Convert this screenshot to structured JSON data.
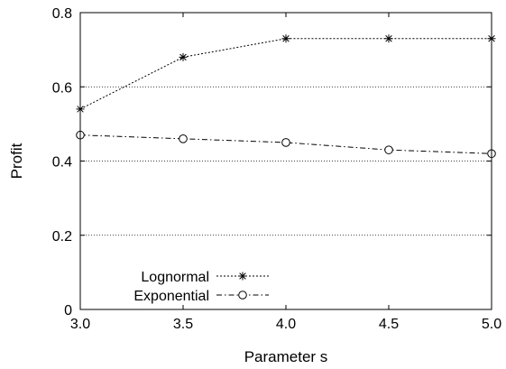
{
  "chart_data": {
    "type": "line",
    "xlabel": "Parameter s",
    "ylabel": "Profit",
    "xlim": [
      3.0,
      5.0
    ],
    "ylim": [
      0,
      0.8
    ],
    "x": [
      3.0,
      3.5,
      4.0,
      4.5,
      5.0
    ],
    "x_ticks": [
      "3.0",
      "3.5",
      "4.0",
      "4.5",
      "5.0"
    ],
    "y_ticks": [
      "0",
      "0.2",
      "0.4",
      "0.6",
      "0.8"
    ],
    "y_tick_values": [
      0,
      0.2,
      0.4,
      0.6,
      0.8
    ],
    "grid": "horizontal dotted",
    "legend_position": "bottom-left",
    "series": [
      {
        "name": "Lognormal",
        "marker": "asterisk",
        "line": "dotted",
        "values": [
          0.54,
          0.68,
          0.73,
          0.73,
          0.73
        ]
      },
      {
        "name": "Exponential",
        "marker": "circle",
        "line": "dash-dot",
        "values": [
          0.47,
          0.46,
          0.45,
          0.43,
          0.42
        ]
      }
    ],
    "colors": {
      "line": "#000000",
      "grid": "#000000",
      "background": "#ffffff"
    }
  }
}
